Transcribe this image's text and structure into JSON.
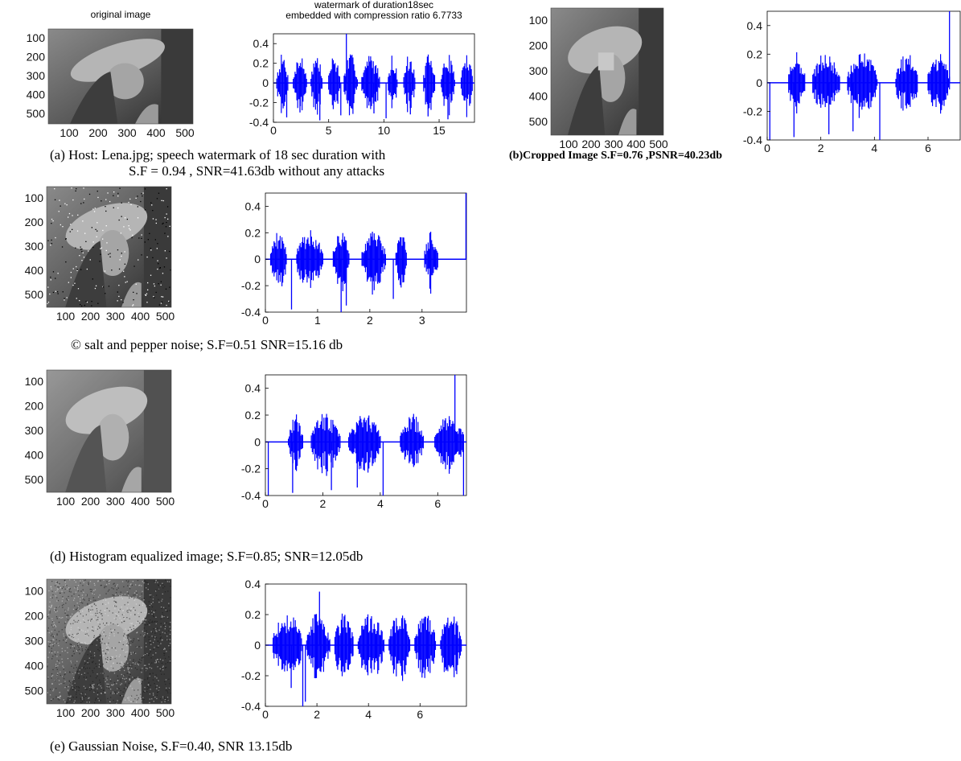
{
  "captions": {
    "a_line1": "(a) Host: Lena.jpg; speech watermark of 18 sec duration with",
    "a_line2": "S.F =   0.94 , SNR=41.63db  without any attacks",
    "b": "(b)Cropped Image  S.F=0.76 ,PSNR=40.23db",
    "c": "© salt and pepper noise; S.F=0.51 SNR=15.16 db",
    "d": "(d) Histogram equalized image; S.F=0.85; SNR=12.05db",
    "e": "(e) Gaussian Noise, S.F=0.40, SNR 13.15db"
  },
  "image_panels": [
    {
      "id": "a",
      "title": "original image",
      "ticks_x": [
        "100",
        "200",
        "300",
        "400",
        "500"
      ],
      "ticks_y": [
        "100",
        "200",
        "300",
        "400",
        "500"
      ],
      "noise": "none"
    },
    {
      "id": "b",
      "title": "",
      "ticks_x": [
        "100",
        "200",
        "300",
        "400",
        "500"
      ],
      "ticks_y": [
        "100",
        "200",
        "300",
        "400",
        "500"
      ],
      "noise": "crop"
    },
    {
      "id": "c",
      "title": "",
      "ticks_x": [
        "100",
        "200",
        "300",
        "400",
        "500"
      ],
      "ticks_y": [
        "100",
        "200",
        "300",
        "400",
        "500"
      ],
      "noise": "saltpepper"
    },
    {
      "id": "d",
      "title": "",
      "ticks_x": [
        "100",
        "200",
        "300",
        "400",
        "500"
      ],
      "ticks_y": [
        "100",
        "200",
        "300",
        "400",
        "500"
      ],
      "noise": "histeq"
    },
    {
      "id": "e",
      "title": "",
      "ticks_x": [
        "100",
        "200",
        "300",
        "400",
        "500"
      ],
      "ticks_y": [
        "100",
        "200",
        "300",
        "400",
        "500"
      ],
      "noise": "gaussian"
    }
  ],
  "colors": {
    "waveform": "#0000ff",
    "axis": "#000000"
  },
  "chart_data": [
    {
      "id": "a",
      "type": "line",
      "title": "watermark of duration18sec\nembedded with compression ratio 6.7733",
      "xlabel": "",
      "ylabel": "",
      "xlim": [
        0,
        18.2
      ],
      "ylim": [
        -0.4,
        0.5
      ],
      "xticks": [
        0,
        5,
        10,
        15
      ],
      "yticks": [
        -0.4,
        -0.2,
        0,
        0.2,
        0.4
      ],
      "bursts": [
        [
          0.3,
          1.3
        ],
        [
          1.8,
          3.0
        ],
        [
          3.4,
          4.4
        ],
        [
          5.0,
          6.0
        ],
        [
          6.4,
          7.6
        ],
        [
          8.0,
          9.6
        ],
        [
          10.4,
          11.2
        ],
        [
          11.8,
          12.8
        ],
        [
          13.6,
          14.6
        ],
        [
          15.2,
          16.4
        ],
        [
          17.0,
          18.0
        ]
      ],
      "spikes": [
        [
          6.6,
          0.5
        ],
        [
          1.2,
          -0.35
        ],
        [
          2.4,
          -0.3
        ],
        [
          4.2,
          -0.38
        ],
        [
          6.1,
          -0.33
        ],
        [
          9.1,
          -0.31
        ],
        [
          10.2,
          -0.36
        ],
        [
          12.4,
          -0.32
        ],
        [
          14.0,
          -0.34
        ],
        [
          15.8,
          -0.37
        ]
      ],
      "burst_amp": 0.3
    },
    {
      "id": "b",
      "type": "line",
      "title": "",
      "xlabel": "",
      "ylabel": "",
      "xlim": [
        0,
        7.2
      ],
      "ylim": [
        -0.4,
        0.5
      ],
      "xticks": [
        0,
        2,
        4,
        6
      ],
      "yticks": [
        -0.4,
        -0.2,
        0,
        0.2,
        0.4
      ],
      "bursts": [
        [
          0.8,
          1.4
        ],
        [
          1.7,
          2.7
        ],
        [
          3.0,
          4.1
        ],
        [
          4.8,
          5.6
        ],
        [
          6.0,
          6.8
        ]
      ],
      "spikes": [
        [
          0.1,
          -0.4
        ],
        [
          1.0,
          -0.38
        ],
        [
          2.3,
          -0.36
        ],
        [
          3.2,
          -0.34
        ],
        [
          4.2,
          -0.4
        ],
        [
          6.8,
          0.5
        ]
      ],
      "burst_amp": 0.22
    },
    {
      "id": "c",
      "type": "line",
      "title": "",
      "xlabel": "",
      "ylabel": "",
      "xlim": [
        0,
        3.85
      ],
      "ylim": [
        -0.4,
        0.5
      ],
      "xticks": [
        0,
        1,
        2,
        3
      ],
      "yticks": [
        -0.4,
        -0.2,
        0,
        0.2,
        0.4
      ],
      "bursts": [
        [
          0.1,
          0.4
        ],
        [
          0.6,
          1.1
        ],
        [
          1.3,
          1.6
        ],
        [
          1.85,
          2.3
        ],
        [
          2.5,
          2.7
        ],
        [
          3.05,
          3.3
        ]
      ],
      "spikes": [
        [
          0.5,
          -0.38
        ],
        [
          1.45,
          -0.4
        ],
        [
          1.55,
          -0.35
        ],
        [
          2.45,
          -0.3
        ],
        [
          3.84,
          0.5
        ]
      ],
      "burst_amp": 0.22
    },
    {
      "id": "d",
      "type": "line",
      "title": "",
      "xlabel": "",
      "ylabel": "",
      "xlim": [
        0,
        7.0
      ],
      "ylim": [
        -0.4,
        0.5
      ],
      "xticks": [
        0,
        2,
        4,
        6
      ],
      "yticks": [
        -0.4,
        -0.2,
        0,
        0.2,
        0.4
      ],
      "bursts": [
        [
          0.8,
          1.3
        ],
        [
          1.6,
          2.6
        ],
        [
          2.9,
          4.0
        ],
        [
          4.7,
          5.5
        ],
        [
          5.9,
          6.9
        ]
      ],
      "spikes": [
        [
          0.1,
          -0.4
        ],
        [
          0.95,
          -0.38
        ],
        [
          2.3,
          -0.36
        ],
        [
          3.2,
          -0.34
        ],
        [
          4.1,
          -0.4
        ],
        [
          6.6,
          0.5
        ],
        [
          6.9,
          -0.4
        ]
      ],
      "burst_amp": 0.22
    },
    {
      "id": "e",
      "type": "line",
      "title": "",
      "xlabel": "",
      "ylabel": "",
      "xlim": [
        0,
        7.8
      ],
      "ylim": [
        -0.4,
        0.4
      ],
      "xticks": [
        0,
        2,
        4,
        6
      ],
      "yticks": [
        -0.4,
        -0.2,
        0,
        0.2,
        0.4
      ],
      "bursts": [
        [
          0.3,
          1.4
        ],
        [
          1.6,
          2.5
        ],
        [
          2.7,
          3.4
        ],
        [
          3.6,
          4.6
        ],
        [
          4.8,
          5.6
        ],
        [
          5.8,
          6.6
        ],
        [
          6.8,
          7.6
        ]
      ],
      "spikes": [
        [
          1.45,
          -0.4
        ],
        [
          1.55,
          -0.37
        ],
        [
          1.0,
          -0.28
        ],
        [
          2.1,
          0.35
        ]
      ],
      "burst_amp": 0.22
    }
  ]
}
